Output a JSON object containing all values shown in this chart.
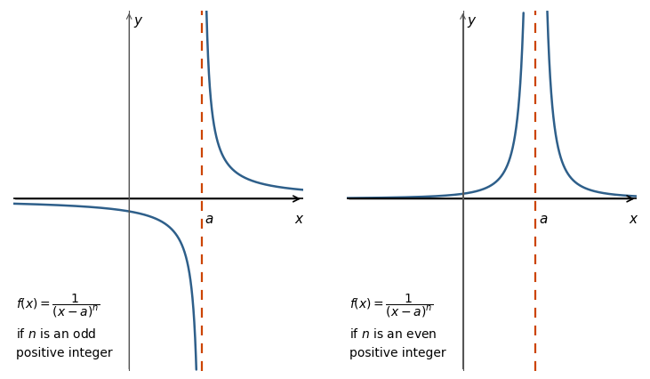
{
  "fig_width": 7.31,
  "fig_height": 4.27,
  "dpi": 100,
  "bg_color": "#ffffff",
  "curve_color": "#2e5f8a",
  "curve_linewidth": 1.8,
  "asymptote_color": "#cc4400",
  "asymptote_linewidth": 1.6,
  "asymptote_linestyle": "--",
  "axis_color": "#000000",
  "axis_linewidth": 1.2,
  "yaxis_color": "#555555",
  "yaxis_linewidth": 0.8,
  "a_value": 2.5,
  "n_odd": 1,
  "n_even": 2,
  "xlim": [
    -4.0,
    6.0
  ],
  "ylim": [
    -5.5,
    6.0
  ],
  "text_color": "#000000",
  "formula_fontsize": 10,
  "label_a": "a",
  "label_x": "x",
  "label_y": "y",
  "odd_line1": "$f(x) = \\dfrac{1}{(x-a)^n}$",
  "odd_line2": "if $n$ is an odd",
  "odd_line3": "positive integer",
  "even_line1": "$f(x) = \\dfrac{1}{(x-a)^n}$",
  "even_line2": "if $n$ is an even",
  "even_line3": "positive integer"
}
